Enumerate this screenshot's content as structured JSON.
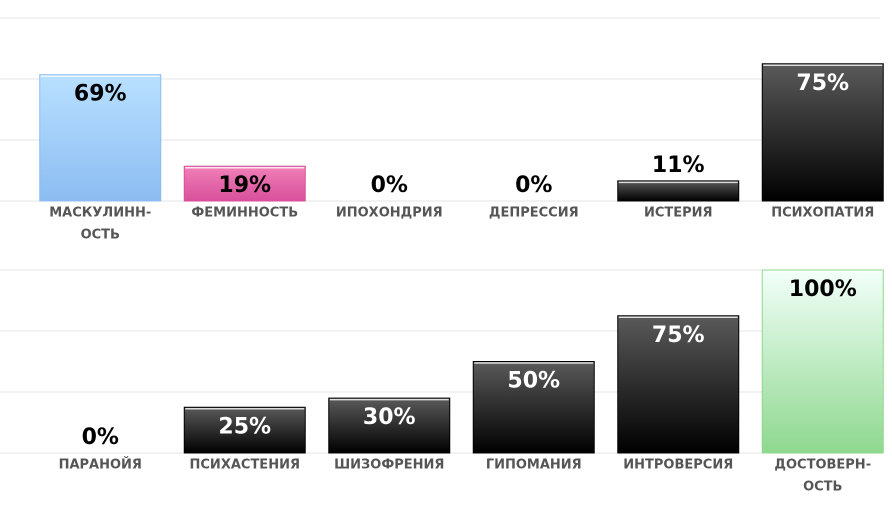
{
  "chart_data": [
    {
      "type": "bar",
      "categories": [
        [
          "МАСКУЛИНН-",
          "ОСТЬ"
        ],
        [
          "ФЕМИННОСТЬ"
        ],
        [
          "ИПОХОНДРИЯ"
        ],
        [
          "ДЕПРЕССИЯ"
        ],
        [
          "ИСТЕРИЯ"
        ],
        [
          "ПСИХОПАТИЯ"
        ]
      ],
      "values": [
        69,
        19,
        0,
        0,
        11,
        75
      ],
      "value_labels": [
        "69%",
        "19%",
        "0%",
        "0%",
        "11%",
        "75%"
      ],
      "colors": [
        [
          "#b8e0ff",
          "#8cbcf2"
        ],
        [
          "#f080b8",
          "#d8509a"
        ],
        [
          "#5a5a5a",
          "#000000"
        ],
        [
          "#5a5a5a",
          "#000000"
        ],
        [
          "#5a5a5a",
          "#000000"
        ],
        [
          "#5a5a5a",
          "#000000"
        ]
      ],
      "ylim": [
        0,
        100
      ],
      "yticks": [
        0,
        33.3,
        66.7,
        100
      ],
      "grid": true
    },
    {
      "type": "bar",
      "categories": [
        [
          "ПАРАНОЙЯ"
        ],
        [
          "ПСИХАСТЕНИЯ"
        ],
        [
          "ШИЗОФРЕНИЯ"
        ],
        [
          "ГИПОМАНИЯ"
        ],
        [
          "ИНТРОВЕРСИЯ"
        ],
        [
          "ДОСТОВЕРН-",
          "ОСТЬ"
        ]
      ],
      "values": [
        0,
        25,
        30,
        50,
        75,
        100
      ],
      "value_labels": [
        "0%",
        "25%",
        "30%",
        "50%",
        "75%",
        "100%"
      ],
      "colors": [
        [
          "#5a5a5a",
          "#000000"
        ],
        [
          "#5a5a5a",
          "#000000"
        ],
        [
          "#5a5a5a",
          "#000000"
        ],
        [
          "#5a5a5a",
          "#000000"
        ],
        [
          "#5a5a5a",
          "#000000"
        ],
        [
          "#f2fffa",
          "#8ed88e"
        ]
      ],
      "ylim": [
        0,
        100
      ],
      "yticks": [
        0,
        33.3,
        66.7,
        100
      ],
      "grid": true
    }
  ]
}
